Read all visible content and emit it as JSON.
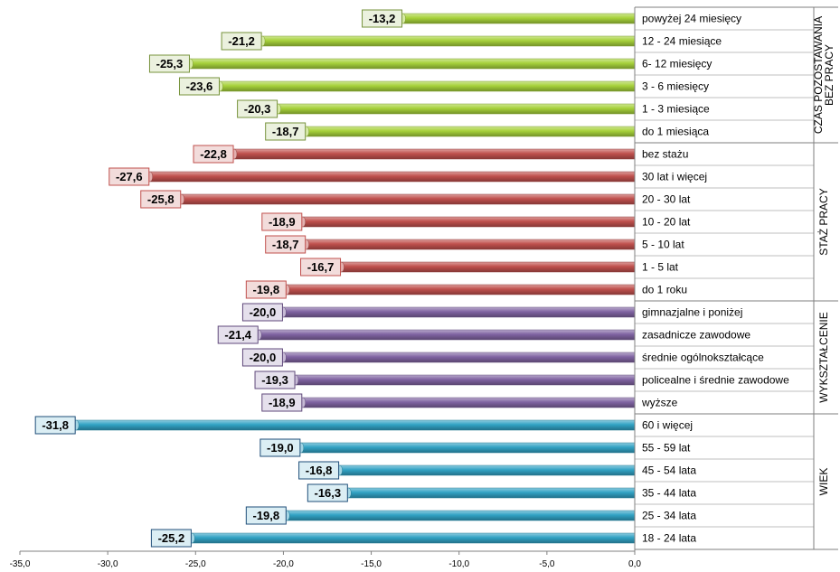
{
  "chart_data": {
    "type": "bar",
    "orientation": "horizontal",
    "xlim": [
      -35,
      0
    ],
    "xticks": [
      "-35,0",
      "-30,0",
      "-25,0",
      "-20,0",
      "-15,0",
      "-10,0",
      "-5,0",
      "0,0"
    ],
    "groups": [
      {
        "label": "CZAS POZOSTAWANIA BEZ PRACY",
        "label_lines": [
          "CZAS POZOSTAWANIA",
          "BEZ PRACY"
        ],
        "bar_color": "#a6d13a",
        "label_fill": "#ebf1de",
        "label_stroke": "#77933c",
        "items": [
          {
            "category": "powyżej 24 miesięcy",
            "value": -13.2,
            "label": "-13,2"
          },
          {
            "category": "12 - 24 miesiące",
            "value": -21.2,
            "label": "-21,2"
          },
          {
            "category": "6- 12 miesięcy",
            "value": -25.3,
            "label": "-25,3"
          },
          {
            "category": "3 - 6 miesięcy",
            "value": -23.6,
            "label": "-23,6"
          },
          {
            "category": "1 - 3 miesiące",
            "value": -20.3,
            "label": "-20,3"
          },
          {
            "category": "do 1 miesiąca",
            "value": -18.7,
            "label": "-18,7"
          }
        ]
      },
      {
        "label": "STAŻ PRACY",
        "label_lines": [
          "STAŻ PRACY"
        ],
        "bar_color": "#c0504d",
        "label_fill": "#f2dcdb",
        "label_stroke": "#c0504d",
        "items": [
          {
            "category": "bez stażu",
            "value": -22.8,
            "label": "-22,8"
          },
          {
            "category": "30 lat i więcej",
            "value": -27.6,
            "label": "-27,6"
          },
          {
            "category": "20 - 30 lat",
            "value": -25.8,
            "label": "-25,8"
          },
          {
            "category": "10 - 20 lat",
            "value": -18.9,
            "label": "-18,9"
          },
          {
            "category": "5 - 10 lat",
            "value": -18.7,
            "label": "-18,7"
          },
          {
            "category": "1 - 5 lat",
            "value": -16.7,
            "label": "-16,7"
          },
          {
            "category": "do 1 roku",
            "value": -19.8,
            "label": "-19,8"
          }
        ]
      },
      {
        "label": "WYKSZTAŁCENIE",
        "label_lines": [
          "WYKSZTAŁCENIE"
        ],
        "bar_color": "#8064a2",
        "label_fill": "#e5e0ec",
        "label_stroke": "#604a7b",
        "items": [
          {
            "category": "gimnazjalne i poniżej",
            "value": -20.0,
            "label": "-20,0"
          },
          {
            "category": "zasadnicze zawodowe",
            "value": -21.4,
            "label": "-21,4"
          },
          {
            "category": "średnie ogólnokształcące",
            "value": -20.0,
            "label": "-20,0"
          },
          {
            "category": "policealne i średnie zawodowe",
            "value": -19.3,
            "label": "-19,3"
          },
          {
            "category": "wyższe",
            "value": -18.9,
            "label": "-18,9"
          }
        ]
      },
      {
        "label": "WIEK",
        "label_lines": [
          "WIEK"
        ],
        "bar_color": "#31a2c4",
        "label_fill": "#dbeef4",
        "label_stroke": "#1f4e79",
        "items": [
          {
            "category": "60 i więcej",
            "value": -31.8,
            "label": "-31,8"
          },
          {
            "category": "55 - 59 lat",
            "value": -19.0,
            "label": "-19,0"
          },
          {
            "category": "45 - 54 lata",
            "value": -16.8,
            "label": "-16,8"
          },
          {
            "category": "35 - 44 lata",
            "value": -16.3,
            "label": "-16,3"
          },
          {
            "category": "25 - 34 lata",
            "value": -19.8,
            "label": "-19,8"
          },
          {
            "category": "18 - 24 lata",
            "value": -25.2,
            "label": "-25,2"
          }
        ]
      }
    ]
  }
}
